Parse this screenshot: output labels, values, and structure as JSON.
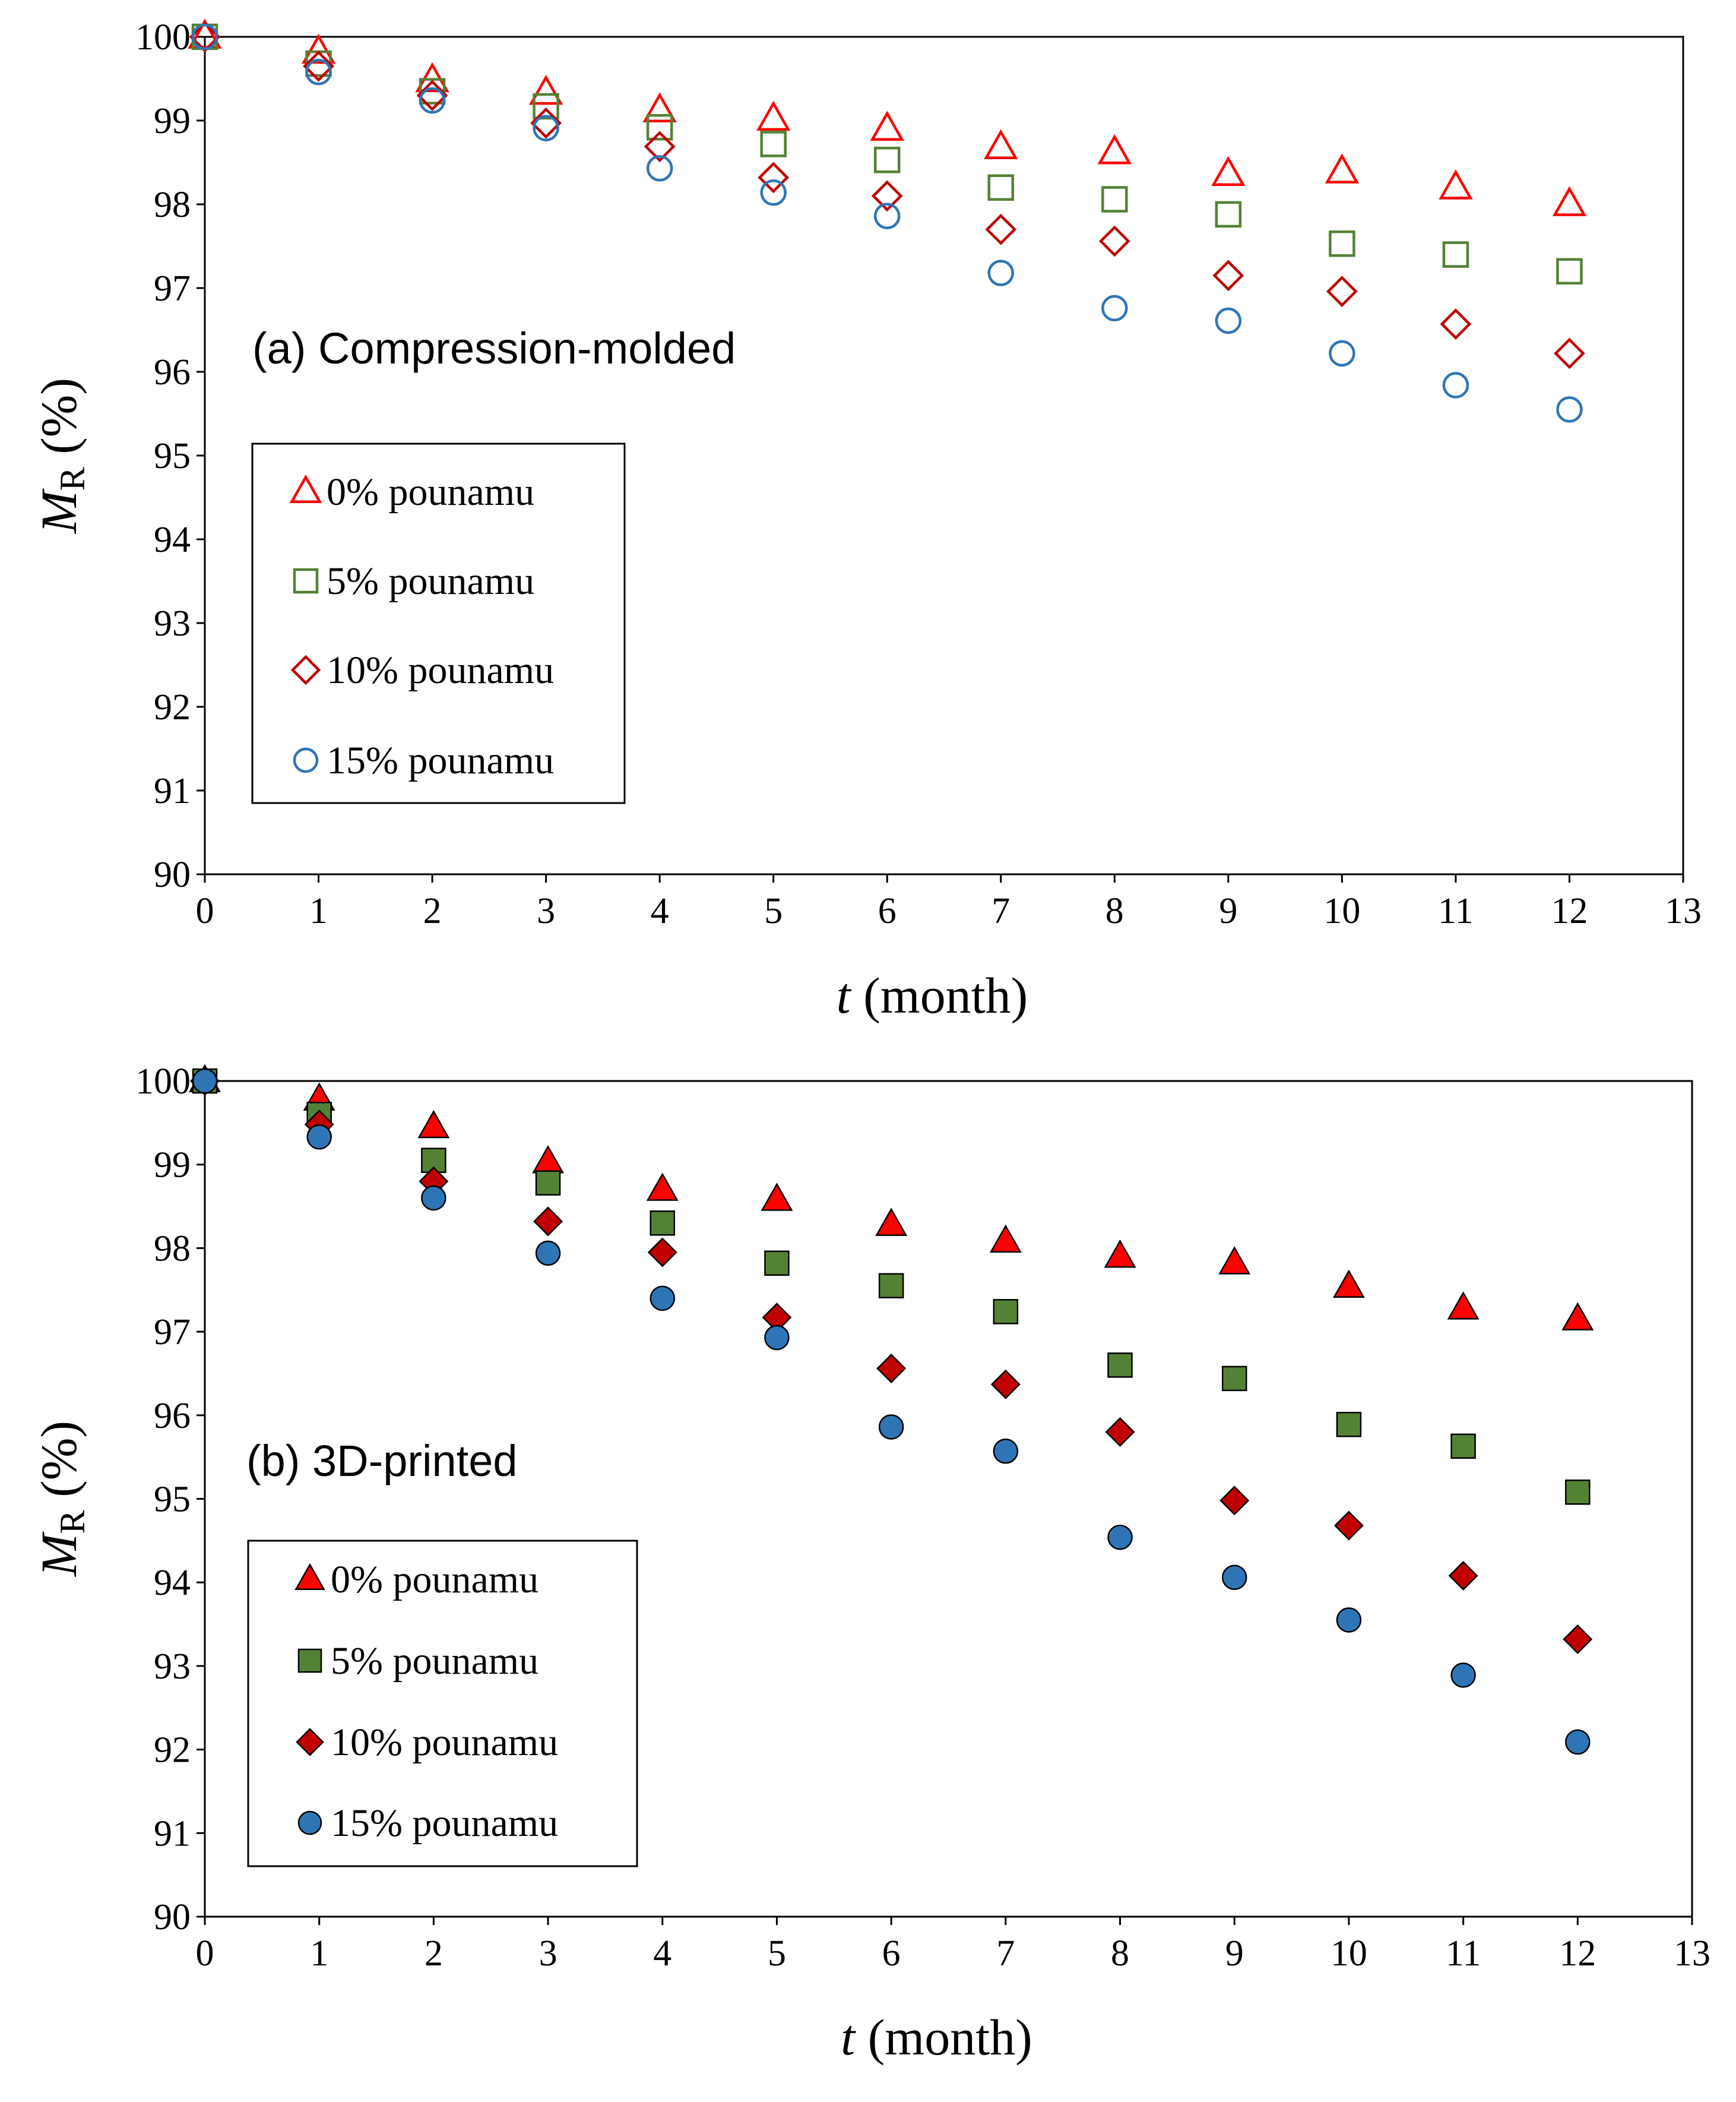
{
  "chart_data": [
    {
      "type": "scatter",
      "title": "",
      "annotation": "(a) Compression-molded",
      "xlabel_var": "t",
      "xlabel_unit": " (month)",
      "ylabel_var": "M",
      "ylabel_sub": "R",
      "ylabel_unit": " (%)",
      "xlim": [
        0,
        13
      ],
      "ylim": [
        90,
        100
      ],
      "xticks": [
        "0",
        "1",
        "2",
        "3",
        "4",
        "5",
        "6",
        "7",
        "8",
        "9",
        "10",
        "11",
        "12",
        "13"
      ],
      "yticks": [
        "90",
        "91",
        "92",
        "93",
        "94",
        "95",
        "96",
        "97",
        "98",
        "99",
        "100"
      ],
      "grid": false,
      "legend_position": "left",
      "x": [
        0,
        1,
        2,
        3,
        4,
        5,
        6,
        7,
        8,
        9,
        10,
        11,
        12
      ],
      "series": [
        {
          "name": "0% pounamu",
          "marker": "triangle",
          "filled": false,
          "color": "#ff0000",
          "values": [
            100,
            99.82,
            99.48,
            99.33,
            99.12,
            99.02,
            98.9,
            98.68,
            98.62,
            98.36,
            98.39,
            98.2,
            98.0
          ]
        },
        {
          "name": "5% pounamu",
          "marker": "square",
          "filled": false,
          "color": "#548235",
          "values": [
            100,
            99.68,
            99.35,
            99.17,
            98.92,
            98.72,
            98.53,
            98.2,
            98.06,
            97.88,
            97.53,
            97.4,
            97.2
          ]
        },
        {
          "name": "10% pounamu",
          "marker": "diamond",
          "filled": false,
          "color": "#c00000",
          "values": [
            100,
            99.65,
            99.3,
            98.97,
            98.69,
            98.32,
            98.1,
            97.7,
            97.56,
            97.15,
            96.96,
            96.57,
            96.22
          ]
        },
        {
          "name": "15% pounamu",
          "marker": "circle",
          "filled": false,
          "color": "#2e75b6",
          "values": [
            100,
            99.58,
            99.24,
            98.91,
            98.43,
            98.14,
            97.86,
            97.18,
            96.76,
            96.61,
            96.22,
            95.84,
            95.55
          ]
        }
      ]
    },
    {
      "type": "scatter",
      "title": "",
      "annotation": "(b) 3D-printed",
      "xlabel_var": "t",
      "xlabel_unit": " (month)",
      "ylabel_var": "M",
      "ylabel_sub": "R",
      "ylabel_unit": " (%)",
      "xlim": [
        0,
        13
      ],
      "ylim": [
        90,
        100
      ],
      "xticks": [
        "0",
        "1",
        "2",
        "3",
        "4",
        "5",
        "6",
        "7",
        "8",
        "9",
        "10",
        "11",
        "12",
        "13"
      ],
      "yticks": [
        "90",
        "91",
        "92",
        "93",
        "94",
        "95",
        "96",
        "97",
        "98",
        "99",
        "100"
      ],
      "grid": false,
      "legend_position": "left",
      "x": [
        0,
        1,
        2,
        3,
        4,
        5,
        6,
        7,
        8,
        9,
        10,
        11,
        12
      ],
      "series": [
        {
          "name": "0% pounamu",
          "marker": "triangle",
          "filled": true,
          "color": "#ff0000",
          "values": [
            100,
            99.78,
            99.45,
            99.03,
            98.7,
            98.58,
            98.28,
            98.08,
            97.9,
            97.82,
            97.54,
            97.28,
            97.15
          ]
        },
        {
          "name": "5% pounamu",
          "marker": "square",
          "filled": true,
          "color": "#548235",
          "values": [
            100,
            99.6,
            99.05,
            98.78,
            98.3,
            97.82,
            97.55,
            97.24,
            96.6,
            96.44,
            95.89,
            95.63,
            95.08
          ]
        },
        {
          "name": "10% pounamu",
          "marker": "diamond",
          "filled": true,
          "color": "#c00000",
          "values": [
            100,
            99.48,
            98.8,
            98.32,
            97.95,
            97.17,
            96.56,
            96.37,
            95.8,
            94.98,
            94.68,
            94.08,
            93.32
          ]
        },
        {
          "name": "15% pounamu",
          "marker": "circle",
          "filled": true,
          "color": "#2e75b6",
          "values": [
            100,
            99.33,
            98.6,
            97.94,
            97.4,
            96.93,
            95.86,
            95.57,
            94.54,
            94.06,
            93.55,
            92.89,
            92.09
          ]
        }
      ]
    }
  ]
}
